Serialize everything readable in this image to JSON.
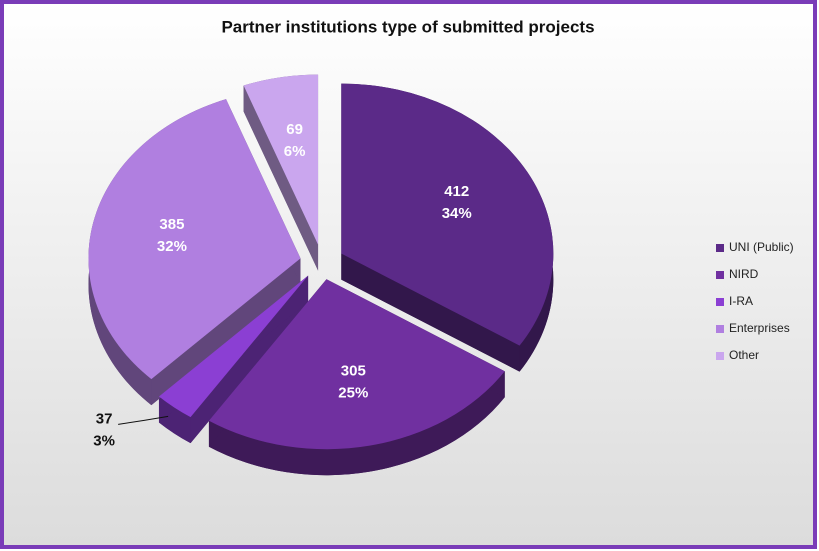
{
  "chart_data": {
    "type": "pie",
    "title": "Partner institutions type of submitted projects",
    "categories": [
      "UNI (Public)",
      "NIRD",
      "I-RA",
      "Enterprises",
      "Other"
    ],
    "values": [
      412,
      305,
      37,
      385,
      69
    ],
    "percent_labels": [
      "34%",
      "25%",
      "3%",
      "32%",
      "6%"
    ],
    "colors": [
      "#5b2a88",
      "#7030a0",
      "#8b3fd3",
      "#b07fe0",
      "#caa6ee"
    ],
    "legend": "right"
  }
}
